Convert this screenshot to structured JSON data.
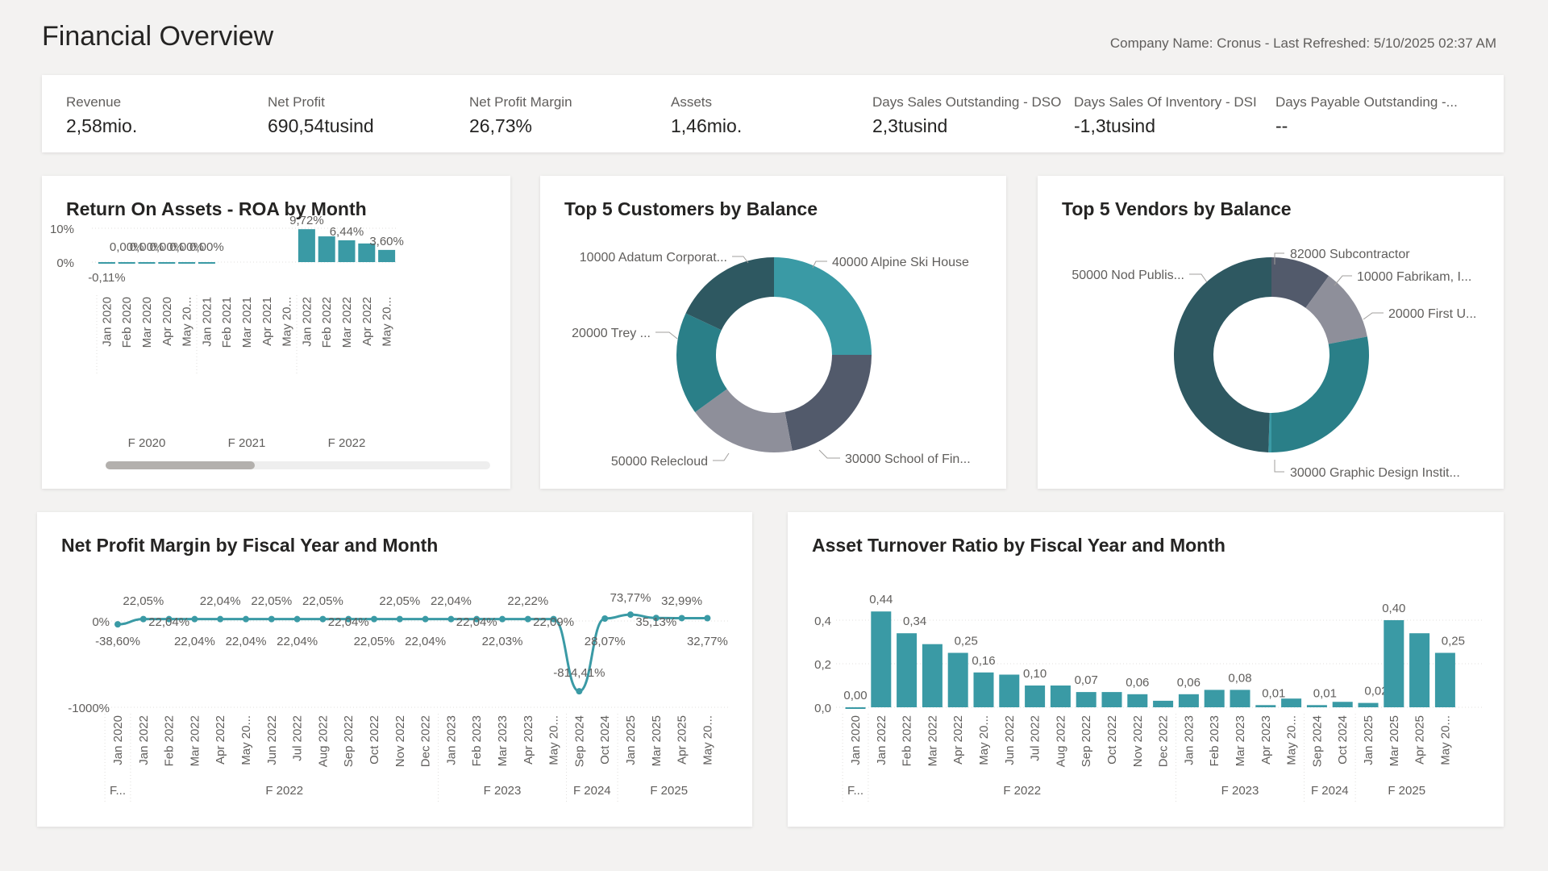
{
  "header": {
    "title": "Financial Overview",
    "meta": "Company Name: Cronus - Last Refreshed: 5/10/2025 02:37 AM"
  },
  "kpis": [
    {
      "label": "Revenue",
      "value": "2,58mio."
    },
    {
      "label": "Net Profit",
      "value": "690,54tusind"
    },
    {
      "label": "Net Profit Margin",
      "value": "26,73%"
    },
    {
      "label": "Assets",
      "value": "1,46mio."
    },
    {
      "label": "Days Sales Outstanding - DSO",
      "value": "2,3tusind"
    },
    {
      "label": "Days Sales Of Inventory - DSI",
      "value": "-1,3tusind"
    },
    {
      "label": "Days Payable Outstanding -...",
      "value": "--"
    }
  ],
  "colors": {
    "teal": "#3a9aa5",
    "teal_dark": "#2a7f88",
    "slate_dark": "#2e5861",
    "slate": "#525a6b",
    "grey": "#8e8f9a",
    "line": "#3a9aa5"
  },
  "charts": {
    "roa": {
      "title": "Return On Assets - ROA by Month"
    },
    "customers": {
      "title": "Top 5 Customers by Balance"
    },
    "vendors": {
      "title": "Top 5 Vendors by Balance"
    },
    "npm": {
      "title": "Net Profit Margin by Fiscal Year and Month"
    },
    "atr": {
      "title": "Asset Turnover Ratio by Fiscal Year and Month"
    }
  },
  "chart_data": [
    {
      "id": "roa",
      "type": "bar",
      "title": "Return On Assets - ROA by Month",
      "categories": [
        "Jan 2020",
        "Feb 2020",
        "Mar 2020",
        "Apr 2020",
        "May 20...",
        "Jan 2021",
        "Feb 2021",
        "Mar 2021",
        "Apr 2021",
        "May 20...",
        "Jan 2022",
        "Feb 2022",
        "Mar 2022",
        "Apr 2022",
        "May 20..."
      ],
      "values": [
        -0.11,
        0.0,
        0.0,
        0.0,
        0.0,
        0.0,
        null,
        null,
        null,
        null,
        9.72,
        7.6,
        6.44,
        5.5,
        3.6
      ],
      "data_labels": [
        "-0,11%",
        "0,00%",
        "0,00%",
        "0,00%",
        "0,00%",
        "0,00%",
        "",
        "",
        "",
        "",
        "9,72%",
        "",
        "6,44%",
        "",
        "3,60%"
      ],
      "groups": [
        {
          "label": "F 2020",
          "count": 5
        },
        {
          "label": "F 2021",
          "count": 5
        },
        {
          "label": "F 2022",
          "count": 5
        }
      ],
      "ytick_labels": [
        "10%",
        "0%"
      ],
      "yticks": [
        10,
        0
      ],
      "ylim": [
        -2,
        12
      ]
    },
    {
      "id": "customers",
      "type": "pie",
      "title": "Top 5 Customers by Balance",
      "labels": [
        "40000 Alpine Ski House",
        "30000 School of Fin...",
        "50000 Relecloud",
        "20000 Trey ...",
        "10000 Adatum Corporat..."
      ],
      "values": [
        25,
        22,
        18,
        17,
        18
      ],
      "colors": [
        "#3a9aa5",
        "#525a6b",
        "#8e8f9a",
        "#2a7f88",
        "#2e5861"
      ]
    },
    {
      "id": "vendors",
      "type": "pie",
      "title": "Top 5 Vendors by Balance",
      "labels": [
        "82000 Subcontractor",
        "10000 Fabrikam, I...",
        "20000 First U...",
        "30000 Graphic Design Instit...",
        "50000 Nod Publis..."
      ],
      "values": [
        10,
        12,
        28,
        0.5,
        49.5
      ],
      "colors": [
        "#525a6b",
        "#8e8f9a",
        "#2a7f88",
        "#3a9aa5",
        "#2e5861"
      ]
    },
    {
      "id": "npm",
      "type": "line",
      "title": "Net Profit Margin by Fiscal Year and Month",
      "categories": [
        "Jan 2020",
        "Jan 2022",
        "Feb 2022",
        "Mar 2022",
        "Apr 2022",
        "May 20...",
        "Jun 2022",
        "Jul 2022",
        "Aug 2022",
        "Sep 2022",
        "Oct 2022",
        "Nov 2022",
        "Dec 2022",
        "Jan 2023",
        "Feb 2023",
        "Mar 2023",
        "Apr 2023",
        "May 20...",
        "Sep 2024",
        "Oct 2024",
        "Jan 2025",
        "Mar 2025",
        "Apr 2025",
        "May 20..."
      ],
      "values": [
        -38.6,
        22.05,
        22.04,
        22.04,
        22.04,
        22.04,
        22.05,
        22.04,
        22.05,
        22.04,
        22.05,
        22.05,
        22.04,
        22.04,
        22.04,
        22.03,
        22.22,
        22.09,
        -814.41,
        28.07,
        73.77,
        35.13,
        32.99,
        32.77
      ],
      "data_labels": [
        "-38,60%",
        "22,05%",
        "22,04%",
        "22,04%",
        "22,04%",
        "22,04%",
        "22,05%",
        "22,04%",
        "22,05%",
        "22,04%",
        "22,05%",
        "22,05%",
        "22,04%",
        "22,04%",
        "22,04%",
        "22,03%",
        "22,22%",
        "22,09%",
        "-814,41%",
        "28,07%",
        "73,77%",
        "35,13%",
        "32,99%",
        "32,77%"
      ],
      "label_pos": [
        "below",
        "above",
        "mid",
        "below",
        "above",
        "below",
        "above",
        "below",
        "above",
        "mid",
        "below",
        "above",
        "below",
        "above",
        "mid",
        "below",
        "above",
        "mid",
        "below",
        "below",
        "above",
        "mid",
        "above",
        "below"
      ],
      "groups": [
        {
          "label": "F...",
          "count": 1
        },
        {
          "label": "F 2022",
          "count": 12
        },
        {
          "label": "F 2023",
          "count": 5
        },
        {
          "label": "F 2024",
          "count": 2
        },
        {
          "label": "F 2025",
          "count": 4
        }
      ],
      "ytick_labels": [
        "0%",
        "-1000%"
      ],
      "yticks": [
        0,
        -1000
      ],
      "ylim": [
        -1000,
        100
      ]
    },
    {
      "id": "atr",
      "type": "bar",
      "title": "Asset Turnover Ratio by Fiscal Year and Month",
      "categories": [
        "Jan 2020",
        "Jan 2022",
        "Feb 2022",
        "Mar 2022",
        "Apr 2022",
        "May 20...",
        "Jun 2022",
        "Jul 2022",
        "Aug 2022",
        "Sep 2022",
        "Oct 2022",
        "Nov 2022",
        "Dec 2022",
        "Jan 2023",
        "Feb 2023",
        "Mar 2023",
        "Apr 2023",
        "May 20...",
        "Sep 2024",
        "Oct 2024",
        "Jan 2025",
        "Mar 2025",
        "Apr 2025",
        "May 20..."
      ],
      "values": [
        0.0,
        0.44,
        0.34,
        0.29,
        0.25,
        0.16,
        0.15,
        0.1,
        0.1,
        0.07,
        0.07,
        0.06,
        0.03,
        0.06,
        0.08,
        0.08,
        0.01,
        0.04,
        0.01,
        0.025,
        0.02,
        0.4,
        0.34,
        0.25
      ],
      "data_labels": [
        "0,00",
        "0,44",
        "0,34",
        "",
        "0,25",
        "0,16",
        "",
        "0,10",
        "",
        "0,07",
        "",
        "0,06",
        "",
        "0,06",
        "",
        "0,08",
        "0,01",
        "",
        "0,01",
        "",
        "0,02",
        "0,40",
        "",
        "0,25"
      ],
      "groups": [
        {
          "label": "F...",
          "count": 1
        },
        {
          "label": "F 2022",
          "count": 12
        },
        {
          "label": "F 2023",
          "count": 5
        },
        {
          "label": "F 2024",
          "count": 2
        },
        {
          "label": "F 2025",
          "count": 4
        }
      ],
      "ytick_labels": [
        "0,4",
        "0,2",
        "0,0"
      ],
      "yticks": [
        0.4,
        0.2,
        0.0
      ],
      "ylim": [
        0,
        0.45
      ]
    }
  ]
}
